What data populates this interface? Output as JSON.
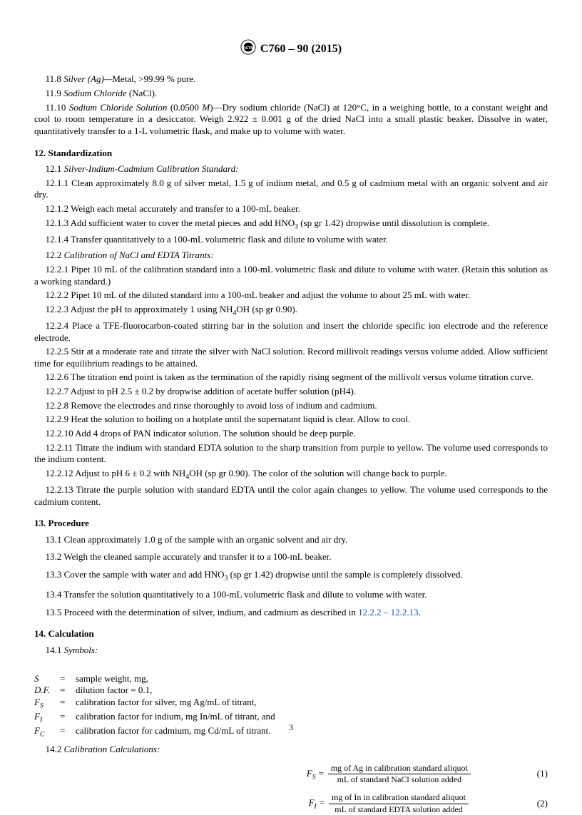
{
  "header": {
    "designation": "C760 – 90 (2015)"
  },
  "s11": {
    "p8": "11.8 <span class='i'>Silver (Ag)—</span>Metal, >99.99 % pure.",
    "p9": "11.9 <span class='i'>Sodium Chloride</span> (NaCl).",
    "p10": "11.10 <span class='i'>Sodium Chloride Solution</span> (0.0500 <span class='i'>M</span>)—Dry sodium chloride (NaCl) at 120°C, in a weighing bottle, to a constant weight and cool to room temperature in a desiccator. Weigh 2.922 ± 0.001 g of the dried NaCl into a small plastic beaker. Dissolve in water, quantitatively transfer to a 1-L volumetric flask, and make up to volume with water."
  },
  "s12": {
    "title": "12. Standardization",
    "sub1": "12.1 <span class='i'>Silver-Indium-Cadmium Calibration Standard:</span>",
    "p1_1": "12.1.1 Clean approximately 8.0 g of silver metal, 1.5 g of indium metal, and 0.5 g of cadmium metal with an organic solvent and air dry.",
    "p1_2": "12.1.2 Weigh each metal accurately and transfer to a 100-mL beaker.",
    "p1_3": "12.1.3 Add sufficient water to cover the metal pieces and add HNO<sub>3</sub> (sp gr 1.42) dropwise until dissolution is complete.",
    "p1_4": "12.1.4 Transfer quantitatively to a 100-mL volumetric flask and dilute to volume with water.",
    "sub2": "12.2 <span class='i'>Calibration of NaCl and EDTA Titrants:</span>",
    "p2_1": "12.2.1 Pipet 10 mL of the calibration standard into a 100-mL volumetric flask and dilute to volume with water. (Retain this solution as a working standard.)",
    "p2_2": "12.2.2 Pipet 10 mL of the diluted standard into a 100-mL beaker and adjust the volume to about 25 mL with water.",
    "p2_3": "12.2.3 Adjust the pH to approximately 1 using NH<sub>4</sub>OH (sp gr 0.90).",
    "p2_4": "12.2.4 Place a TFE-fluorocarbon-coated stirring bar in the solution and insert the chloride specific ion electrode and the reference electrode.",
    "p2_5": "12.2.5 Stir at a moderate rate and titrate the silver with NaCl solution. Record millivolt readings versus volume added. Allow sufficient time for equilibrium readings to be attained.",
    "p2_6": "12.2.6 The titration end point is taken as the termination of the rapidly rising segment of the millivolt versus volume titration curve.",
    "p2_7": "12.2.7 Adjust to pH 2.5 ± 0.2 by dropwise addition of acetate buffer solution (pH4).",
    "p2_8": "12.2.8 Remove the electrodes and rinse thoroughly to avoid loss of indium and cadmium.",
    "p2_9": "12.2.9 Heat the solution to boiling on a hotplate until the supernatant liquid is clear. Allow to cool.",
    "p2_10": "12.2.10 Add 4 drops of PAN indicator solution. The solution should be deep purple.",
    "p2_11": "12.2.11 Titrate the indium with standard EDTA solution to the sharp transition from purple to yellow. The volume used corresponds to the indium content.",
    "p2_12": "12.2.12 Adjust to pH 6 ± 0.2 with NH<sub>4</sub>OH (sp gr 0.90). The color of the solution will change back to purple.",
    "p2_13": "12.2.13 Titrate the purple solution with standard EDTA until the color again changes to yellow. The volume used corresponds to the cadmium content."
  },
  "s13": {
    "title": "13. Procedure",
    "p1": "13.1 Clean approximately 1.0 g of the sample with an organic solvent and air dry.",
    "p2": "13.2 Weigh the cleaned sample accurately and transfer it to a 100-mL beaker.",
    "p3": "13.3 Cover the sample with water and add HNO<sub>3</sub> (sp gr 1.42) dropwise until the sample is completely dissolved.",
    "p4": "13.4 Transfer the solution quantitatively to a 100-mL volumetric flask and dilute to volume with water.",
    "p5": "13.5 Proceed with the determination of silver, indium, and cadmium as described in <a class='cross' data-name='cross-ref-link' data-interactable='true'>12.2.2 – 12.2.13</a>."
  },
  "s14": {
    "title": "14. Calculation",
    "sub1": "14.1 <span class='i'>Symbols:</span>",
    "syms": [
      {
        "s": "S",
        "d": "sample weight, mg,"
      },
      {
        "s": "D.F.",
        "d": "dilution factor = 0.1,"
      },
      {
        "s": "F<sub>S</sub>",
        "d": "calibration factor for silver, mg Ag/mL of titrant,"
      },
      {
        "s": "F<sub>I</sub>",
        "d": "calibration factor for indium, mg In/mL of titrant, and"
      },
      {
        "s": "F<sub>C</sub>",
        "d": "calibration factor for cadmium, mg Cd/mL of titrant."
      }
    ],
    "sub2": "14.2 <span class='i'>Calibration Calculations:</span>",
    "eq1": {
      "lhs": "F<sub>S</sub> =",
      "num": "mg of Ag in calibration standard aliquot",
      "den": "mL of standard NaCl solution added",
      "n": "(1)"
    },
    "eq2": {
      "lhs": "F<sub>I</sub> =",
      "num": "mg of In in calibration standard aliquot",
      "den": "mL of standard EDTA solution added",
      "n": "(2)"
    }
  },
  "pageNumber": "3"
}
